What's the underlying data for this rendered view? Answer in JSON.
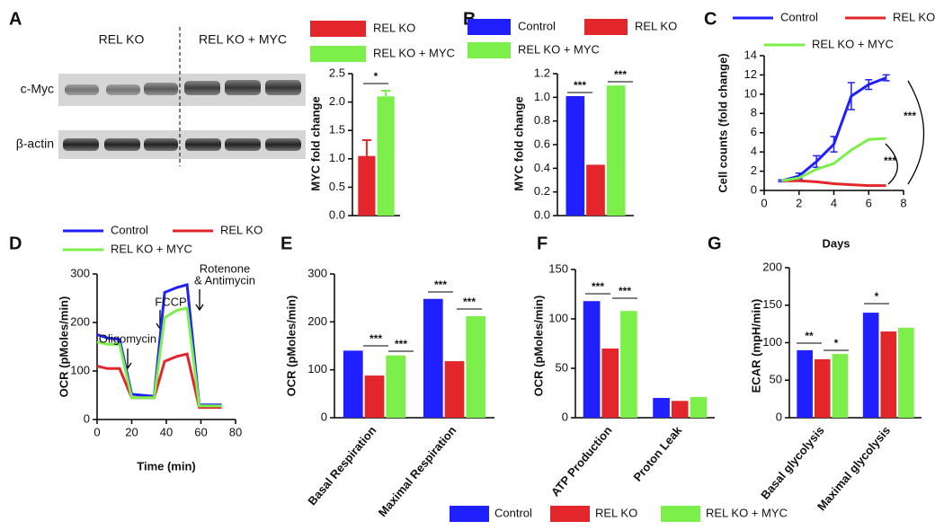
{
  "blot": {
    "lanes": [
      "REL KO",
      "REL KO + MYC"
    ],
    "rows": [
      "c-Myc",
      "β-actin"
    ]
  },
  "shared_legend": {
    "labels": [
      "Control",
      "REL KO",
      "REL KO + MYC"
    ],
    "colors": [
      "#1f1fff",
      "#e3262b",
      "#7def4a"
    ]
  },
  "chart_data": [
    {
      "type": "bar",
      "panel": "A",
      "ylabel": "MYC fold change",
      "series": [
        {
          "name": "REL KO",
          "color": "#e3262b",
          "values": [
            1.05
          ],
          "errors": [
            0.28
          ]
        },
        {
          "name": "REL KO + MYC",
          "color": "#7def4a",
          "values": [
            2.1
          ],
          "errors": [
            0.1
          ]
        }
      ],
      "ylim": [
        0,
        2.5
      ],
      "yticks": [
        {
          "value": 0,
          "label": "0.0"
        },
        0.5,
        {
          "value": 1,
          "label": "1.0"
        },
        1.5,
        {
          "value": 2,
          "label": "2.0"
        },
        2.5
      ],
      "annotations": [
        "*"
      ]
    },
    {
      "type": "bar",
      "panel": "B",
      "ylabel": "MYC fold change",
      "series": [
        {
          "name": "Control",
          "color": "#1f1fff",
          "values": [
            1.01
          ]
        },
        {
          "name": "REL KO",
          "color": "#e3262b",
          "values": [
            0.43
          ]
        },
        {
          "name": "REL KO + MYC",
          "color": "#7def4a",
          "values": [
            1.1
          ]
        }
      ],
      "ylim": [
        0,
        1.2
      ],
      "yticks": [
        {
          "value": 0,
          "label": "0.0"
        },
        0.2,
        0.4,
        0.6,
        0.8,
        {
          "value": 1,
          "label": "1.0"
        },
        1.2
      ],
      "annotations": [
        "***",
        "***"
      ]
    },
    {
      "type": "line",
      "panel": "C",
      "xlabel": "Days",
      "ylabel": "Cell counts (fold change)",
      "x": [
        1,
        2,
        3,
        4,
        5,
        6,
        7
      ],
      "series": [
        {
          "name": "Control",
          "color": "#1f1fff",
          "values": [
            1,
            1.5,
            3,
            4.8,
            9.8,
            11,
            11.7
          ],
          "errors": [
            0.1,
            0.3,
            0.6,
            0.8,
            1.4,
            0.5,
            0.3
          ]
        },
        {
          "name": "REL KO",
          "color": "#e3262b",
          "values": [
            1,
            1,
            0.9,
            0.7,
            0.6,
            0.5,
            0.5
          ]
        },
        {
          "name": "REL KO + MYC",
          "color": "#7def4a",
          "values": [
            1,
            1.3,
            2.2,
            2.8,
            4.2,
            5.3,
            5.4
          ]
        }
      ],
      "xlim": [
        0,
        8
      ],
      "xticks": [
        0,
        2,
        4,
        6,
        8
      ],
      "ylim": [
        0,
        14
      ],
      "yticks": [
        0,
        2,
        4,
        6,
        8,
        10,
        12,
        14
      ],
      "annotations": [
        "***",
        "***"
      ]
    },
    {
      "type": "line",
      "panel": "D",
      "xlabel": "Time (min)",
      "ylabel": "OCR (pMoles/min)",
      "x": [
        0,
        6,
        13,
        20,
        26,
        33,
        39,
        46,
        52,
        59,
        65,
        72
      ],
      "series": [
        {
          "name": "Control",
          "color": "#1f1fff",
          "values": [
            175,
            168,
            165,
            52,
            50,
            48,
            262,
            272,
            278,
            30,
            30,
            30
          ]
        },
        {
          "name": "REL KO",
          "color": "#e3262b",
          "values": [
            110,
            105,
            105,
            45,
            45,
            45,
            120,
            130,
            135,
            25,
            25,
            25
          ]
        },
        {
          "name": "REL KO + MYC",
          "color": "#7def4a",
          "values": [
            160,
            155,
            155,
            45,
            45,
            45,
            210,
            225,
            230,
            28,
            28,
            28
          ]
        }
      ],
      "xlim": [
        0,
        80
      ],
      "xticks": [
        0,
        20,
        40,
        60,
        80
      ],
      "ylim": [
        0,
        300
      ],
      "yticks": [
        0,
        100,
        200,
        300
      ],
      "annotations": [
        "Oligomycin",
        "FCCP",
        "Rotenone",
        "& Antimycin"
      ]
    },
    {
      "type": "bar",
      "panel": "E",
      "ylabel": "OCR (pMoles/min)",
      "categories": [
        "Basal Respiration",
        "Maximal Respiration"
      ],
      "series": [
        {
          "color": "#1f1fff",
          "values": [
            140,
            248
          ]
        },
        {
          "color": "#e3262b",
          "values": [
            88,
            118
          ]
        },
        {
          "color": "#7def4a",
          "values": [
            130,
            212
          ]
        }
      ],
      "ylim": [
        0,
        300
      ],
      "yticks": [
        0,
        100,
        200,
        300
      ],
      "annotations": [
        "***",
        "***",
        "***",
        "***"
      ]
    },
    {
      "type": "bar",
      "panel": "F",
      "ylabel": "OCR (pMoles/min)",
      "categories": [
        "ATP Production",
        "Proton Leak"
      ],
      "series": [
        {
          "color": "#1f1fff",
          "values": [
            118,
            20
          ]
        },
        {
          "color": "#e3262b",
          "values": [
            70,
            17
          ]
        },
        {
          "color": "#7def4a",
          "values": [
            108,
            21
          ]
        }
      ],
      "ylim": [
        0,
        150
      ],
      "yticks": [
        0,
        50,
        100,
        150
      ],
      "annotations": [
        "***",
        "***"
      ]
    },
    {
      "type": "bar",
      "panel": "G",
      "ylabel": "ECAR (mpH/min)",
      "categories": [
        "Basal glycolysis",
        "Maximal glycolysis"
      ],
      "series": [
        {
          "color": "#1f1fff",
          "values": [
            90,
            140
          ]
        },
        {
          "color": "#e3262b",
          "values": [
            78,
            115
          ]
        },
        {
          "color": "#7def4a",
          "values": [
            85,
            120
          ]
        }
      ],
      "ylim": [
        0,
        200
      ],
      "yticks": [
        0,
        50,
        100,
        150,
        200
      ],
      "annotations": [
        "**",
        "*",
        "*"
      ]
    }
  ]
}
